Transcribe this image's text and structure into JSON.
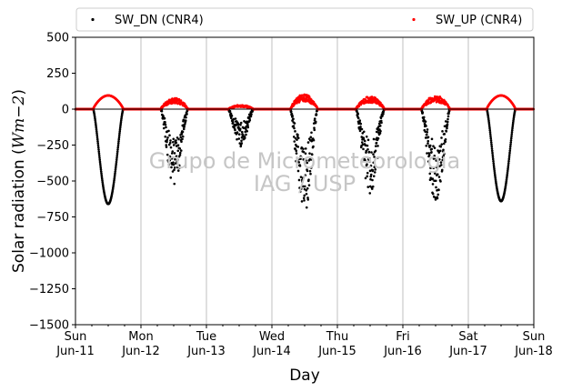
{
  "chart_data": {
    "type": "scatter",
    "title": "",
    "xlabel": "Day",
    "ylabel_main": "Solar radiation (",
    "ylabel_unit": "Wm",
    "ylabel_exp": "−2",
    "ylabel_close": ")",
    "ylim": [
      -1500,
      500
    ],
    "xlim": [
      0,
      7
    ],
    "y_ticks": [
      500,
      250,
      0,
      -250,
      -500,
      -750,
      -1000,
      -1250,
      -1500
    ],
    "y_tick_labels": [
      "500",
      "250",
      "0",
      "−250",
      "−500",
      "−750",
      "−1000",
      "−1250",
      "−1500"
    ],
    "x_ticks": [
      {
        "x": 0,
        "day": "Sun",
        "date": "Jun-11"
      },
      {
        "x": 1,
        "day": "Mon",
        "date": "Jun-12"
      },
      {
        "x": 2,
        "day": "Tue",
        "date": "Jun-13"
      },
      {
        "x": 3,
        "day": "Wed",
        "date": "Jun-14"
      },
      {
        "x": 4,
        "day": "Thu",
        "date": "Jun-15"
      },
      {
        "x": 5,
        "day": "Fri",
        "date": "Jun-16"
      },
      {
        "x": 6,
        "day": "Sat",
        "date": "Jun-17"
      },
      {
        "x": 7,
        "day": "Sun",
        "date": "Jun-18"
      }
    ],
    "grid": "vertical",
    "zero_line": true,
    "legend_placement": "top, above plot",
    "watermark": [
      "Grupo de Micrometeorologia",
      "IAG / USP"
    ],
    "series": [
      {
        "name": "SW_DN (CNR4)",
        "color": "#000000",
        "days": [
          {
            "day": 0,
            "type": "clear",
            "start": 0.27,
            "end": 0.73,
            "peak": -660
          },
          {
            "day": 1,
            "type": "cloudy",
            "start": 0.3,
            "end": 0.72,
            "min": -540
          },
          {
            "day": 2,
            "type": "cloudy",
            "start": 0.33,
            "end": 0.72,
            "min": -260
          },
          {
            "day": 3,
            "type": "cloudy",
            "start": 0.28,
            "end": 0.7,
            "min": -740
          },
          {
            "day": 4,
            "type": "cloudy",
            "start": 0.28,
            "end": 0.72,
            "min": -590
          },
          {
            "day": 5,
            "type": "cloudy",
            "start": 0.28,
            "end": 0.72,
            "min": -660
          },
          {
            "day": 6,
            "type": "clear",
            "start": 0.28,
            "end": 0.72,
            "peak": -640
          }
        ]
      },
      {
        "name": "SW_UP (CNR4)",
        "color": "#ff0000",
        "days": [
          {
            "day": 0,
            "type": "clear",
            "start": 0.27,
            "end": 0.73,
            "peak": 95
          },
          {
            "day": 1,
            "type": "cloudy",
            "start": 0.3,
            "end": 0.72,
            "max": 80
          },
          {
            "day": 2,
            "type": "cloudy",
            "start": 0.33,
            "end": 0.72,
            "max": 30
          },
          {
            "day": 3,
            "type": "cloudy",
            "start": 0.28,
            "end": 0.7,
            "max": 105
          },
          {
            "day": 4,
            "type": "cloudy",
            "start": 0.28,
            "end": 0.72,
            "max": 90
          },
          {
            "day": 5,
            "type": "cloudy",
            "start": 0.28,
            "end": 0.72,
            "max": 95
          },
          {
            "day": 6,
            "type": "clear",
            "start": 0.28,
            "end": 0.72,
            "peak": 95
          }
        ]
      }
    ]
  }
}
